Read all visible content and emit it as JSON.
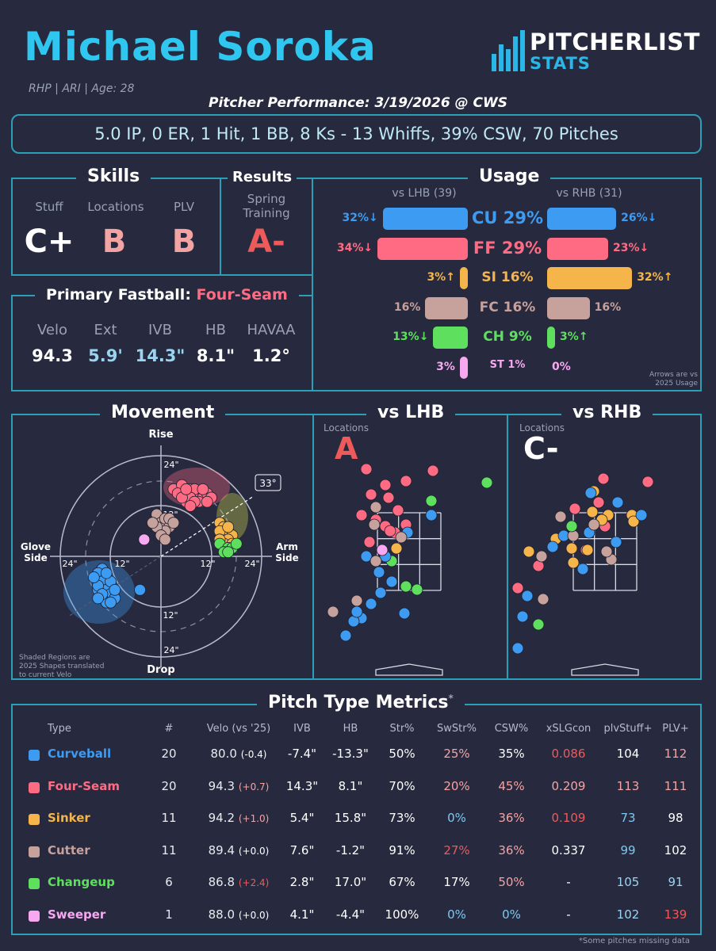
{
  "header": {
    "name": "Michael Soroka",
    "bio": "RHP | ARI | Age: 28",
    "logo_top": "PITCHERLIST",
    "logo_bottom": "STATS",
    "performance_title": "Pitcher Performance: 3/19/2026 @ CWS",
    "summary": "5.0 IP, 0 ER, 1 Hit, 1 BB, 8 Ks - 13 Whiffs, 39% CSW, 70 Pitches"
  },
  "skills": {
    "title": "Skills",
    "items": [
      {
        "label": "Stuff",
        "grade": "C+",
        "color": "#ffffff"
      },
      {
        "label": "Locations",
        "grade": "B",
        "color": "#f4a3a3"
      },
      {
        "label": "PLV",
        "grade": "B",
        "color": "#f4a3a3"
      }
    ]
  },
  "results": {
    "title": "Results",
    "label_line1": "Spring",
    "label_line2": "Training",
    "grade": "A-",
    "color": "#ee5a5a"
  },
  "fastball": {
    "title_prefix": "Primary Fastball:",
    "pitch": "Four-Seam",
    "pitch_color": "#ff6b82",
    "stats": [
      {
        "label": "Velo",
        "value": "94.3",
        "color": "#ffffff"
      },
      {
        "label": "Ext",
        "value": "5.9'",
        "color": "#9ad4f0"
      },
      {
        "label": "IVB",
        "value": "14.3\"",
        "color": "#9ad4f0"
      },
      {
        "label": "HB",
        "value": "8.1\"",
        "color": "#ffffff"
      },
      {
        "label": "HAVAA",
        "value": "1.2°",
        "color": "#ffffff"
      }
    ]
  },
  "usage": {
    "title": "Usage",
    "lhb_header": "vs LHB (39)",
    "rhb_header": "vs RHB (31)",
    "note_line1": "Arrows are vs",
    "note_line2": "2025 Usage",
    "rows": [
      {
        "mid": "CU 29%",
        "color": "#3d9bf2",
        "lhb": 32,
        "lhb_label": "32%↓",
        "rhb": 26,
        "rhb_label": "26%↓",
        "big": true
      },
      {
        "mid": "FF 29%",
        "color": "#ff6b82",
        "lhb": 34,
        "lhb_label": "34%↓",
        "rhb": 23,
        "rhb_label": "23%↓",
        "big": true
      },
      {
        "mid": "SI 16%",
        "color": "#f5b54a",
        "lhb": 3,
        "lhb_label": "3%↑",
        "rhb": 32,
        "rhb_label": "32%↑",
        "big": false
      },
      {
        "mid": "FC 16%",
        "color": "#c7a19b",
        "lhb": 16,
        "lhb_label": "16%",
        "rhb": 16,
        "rhb_label": "16%",
        "big": false
      },
      {
        "mid": "CH 9%",
        "color": "#5ee05e",
        "lhb": 13,
        "lhb_label": "13%↓",
        "rhb": 3,
        "rhb_label": "3%↑",
        "big": false
      },
      {
        "mid": "ST 1%",
        "color": "#f7a8f0",
        "lhb": 3,
        "lhb_label": "3%",
        "rhb": 0,
        "rhb_label": "0%",
        "big": false
      }
    ]
  },
  "movement": {
    "title": "Movement",
    "rise": "Rise",
    "drop": "Drop",
    "glove_line1": "Glove",
    "glove_line2": "Side",
    "arm_line1": "Arm",
    "arm_line2": "Side",
    "angle": "33°",
    "ring_24": "24\"",
    "ring_12": "12\"",
    "note_line1": "Shaded Regions are",
    "note_line2": "2025 Shapes translated",
    "note_line3": "to current Velo"
  },
  "locations": {
    "lhb_title": "vs LHB",
    "rhb_title": "vs RHB",
    "label": "Locations",
    "lhb_grade": "A",
    "lhb_grade_color": "#ee5a5a",
    "rhb_grade": "C-",
    "rhb_grade_color": "#ffffff"
  },
  "metrics": {
    "title": "Pitch Type Metrics",
    "title_mark": "*",
    "footnote": "*Some pitches missing data",
    "headers": [
      "Type",
      "#",
      "Velo (vs '25)",
      "IVB",
      "HB",
      "Str%",
      "SwStr%",
      "CSW%",
      "xSLGcon",
      "plvStuff+",
      "PLV+"
    ],
    "rows": [
      {
        "type": "Curveball",
        "color": "#3d9bf2",
        "n": "20",
        "velo": "80.0",
        "velo_delta": "(-0.4)",
        "ivb": "-7.4\"",
        "hb": "-13.3\"",
        "str": "50%",
        "swstr": "25%",
        "csw": "35%",
        "xslg": "0.086",
        "stuff": "104",
        "plv": "112"
      },
      {
        "type": "Four-Seam",
        "color": "#ff6b82",
        "n": "20",
        "velo": "94.3",
        "velo_delta": "(+0.7)",
        "ivb": "14.3\"",
        "hb": "8.1\"",
        "str": "70%",
        "swstr": "20%",
        "csw": "45%",
        "xslg": "0.209",
        "stuff": "113",
        "plv": "111"
      },
      {
        "type": "Sinker",
        "color": "#f5b54a",
        "n": "11",
        "velo": "94.2",
        "velo_delta": "(+1.0)",
        "ivb": "5.4\"",
        "hb": "15.8\"",
        "str": "73%",
        "swstr": "0%",
        "csw": "36%",
        "xslg": "0.109",
        "stuff": "73",
        "plv": "98"
      },
      {
        "type": "Cutter",
        "color": "#c7a19b",
        "n": "11",
        "velo": "89.4",
        "velo_delta": "(+0.0)",
        "ivb": "7.6\"",
        "hb": "-1.2\"",
        "str": "91%",
        "swstr": "27%",
        "csw": "36%",
        "xslg": "0.337",
        "stuff": "99",
        "plv": "102"
      },
      {
        "type": "Changeup",
        "color": "#5ee05e",
        "n": "6",
        "velo": "86.8",
        "velo_delta": "(+2.4)",
        "ivb": "2.8\"",
        "hb": "17.0\"",
        "str": "67%",
        "swstr": "17%",
        "csw": "50%",
        "xslg": "-",
        "stuff": "105",
        "plv": "91"
      },
      {
        "type": "Sweeper",
        "color": "#f7a8f0",
        "n": "1",
        "velo": "88.0",
        "velo_delta": "(+0.0)",
        "ivb": "4.1\"",
        "hb": "-4.4\"",
        "str": "100%",
        "swstr": "0%",
        "csw": "0%",
        "xslg": "-",
        "stuff": "102",
        "plv": "139"
      }
    ],
    "cell_colors": {
      "Curveball": {
        "swstr": "#f4a3a3",
        "csw": "#ffffff",
        "xslg": "#ee5a5a",
        "stuff": "#ffffff",
        "plv": "#f4a3a3",
        "velo_delta": "#ffffff"
      },
      "Four-Seam": {
        "swstr": "#f4a3a3",
        "csw": "#f4a3a3",
        "xslg": "#f4a3a3",
        "stuff": "#f4a3a3",
        "plv": "#f4a3a3",
        "velo_delta": "#f4a3a3"
      },
      "Sinker": {
        "swstr": "#7ec8f0",
        "csw": "#f4a3a3",
        "xslg": "#ee5a5a",
        "stuff": "#7ec8f0",
        "plv": "#ffffff",
        "velo_delta": "#f4a3a3"
      },
      "Cutter": {
        "swstr": "#ee5a5a",
        "csw": "#f4a3a3",
        "xslg": "#ffffff",
        "stuff": "#7ec8f0",
        "plv": "#ffffff",
        "velo_delta": "#ffffff"
      },
      "Changeup": {
        "swstr": "#ffffff",
        "csw": "#f4a3a3",
        "xslg": "#ffffff",
        "stuff": "#9ad4f0",
        "plv": "#9ad4f0",
        "velo_delta": "#ee5a5a"
      },
      "Sweeper": {
        "swstr": "#7ec8f0",
        "csw": "#7ec8f0",
        "xslg": "#ffffff",
        "stuff": "#9ad4f0",
        "plv": "#ee5a5a",
        "velo_delta": "#ffffff"
      }
    }
  },
  "chart_data": [
    {
      "type": "bar",
      "title": "Usage",
      "categories": [
        "CU",
        "FF",
        "SI",
        "FC",
        "CH",
        "ST"
      ],
      "series": [
        {
          "name": "vs LHB (39)",
          "values": [
            32,
            34,
            3,
            16,
            13,
            3
          ]
        },
        {
          "name": "vs RHB (31)",
          "values": [
            26,
            23,
            32,
            16,
            3,
            0
          ]
        }
      ]
    },
    {
      "type": "scatter",
      "title": "Movement",
      "xlabel": "Arm Side",
      "ylabel": "Rise",
      "xlim": [
        -30,
        30
      ],
      "ylim": [
        -30,
        30
      ],
      "series": [
        {
          "name": "CU",
          "color": "#3d9bf2",
          "points": [
            [
              -14,
              -3
            ],
            [
              -15,
              -4
            ],
            [
              -13,
              -5
            ],
            [
              -14,
              -6
            ],
            [
              -12,
              -7
            ],
            [
              -13,
              -8
            ],
            [
              -15,
              -8
            ],
            [
              -12,
              -9
            ],
            [
              -14,
              -10
            ],
            [
              -11,
              -10
            ],
            [
              -13,
              -11
            ],
            [
              -15,
              -7
            ],
            [
              -16,
              -5
            ],
            [
              -12,
              -6
            ],
            [
              -13,
              -4
            ],
            [
              -14,
              -9
            ],
            [
              -11,
              -8
            ],
            [
              -12,
              -11
            ],
            [
              -5,
              -8
            ],
            [
              -15,
              -10
            ]
          ]
        },
        {
          "name": "FF",
          "color": "#ff6b82",
          "points": [
            [
              3,
              16
            ],
            [
              5,
              17
            ],
            [
              6,
              15
            ],
            [
              7,
              16
            ],
            [
              8,
              14
            ],
            [
              9,
              15
            ],
            [
              10,
              14
            ],
            [
              11,
              15
            ],
            [
              8,
              16
            ],
            [
              6,
              13
            ],
            [
              7,
              14
            ],
            [
              9,
              13
            ],
            [
              4,
              15
            ],
            [
              5,
              14
            ],
            [
              10,
              16
            ],
            [
              12,
              14
            ],
            [
              8,
              13
            ],
            [
              6,
              16
            ],
            [
              7,
              12
            ],
            [
              11,
              13
            ]
          ]
        },
        {
          "name": "SI",
          "color": "#f5b54a",
          "points": [
            [
              14,
              8
            ],
            [
              15,
              7
            ],
            [
              16,
              6
            ],
            [
              15,
              5
            ],
            [
              17,
              5
            ],
            [
              16,
              4
            ],
            [
              14,
              6
            ],
            [
              15,
              3
            ],
            [
              17,
              3
            ],
            [
              16,
              7
            ],
            [
              14,
              4
            ]
          ]
        },
        {
          "name": "FC",
          "color": "#c7a19b",
          "points": [
            [
              -1,
              10
            ],
            [
              0,
              8
            ],
            [
              1,
              9
            ],
            [
              2,
              7
            ],
            [
              1,
              6
            ],
            [
              -1,
              7
            ],
            [
              0,
              5
            ],
            [
              2,
              9
            ],
            [
              1,
              4
            ],
            [
              -2,
              8
            ],
            [
              3,
              8
            ]
          ]
        },
        {
          "name": "CH",
          "color": "#5ee05e",
          "points": [
            [
              14,
              3
            ],
            [
              16,
              2
            ],
            [
              15,
              1
            ],
            [
              17,
              2
            ],
            [
              18,
              3
            ],
            [
              16,
              1
            ]
          ]
        },
        {
          "name": "ST",
          "color": "#f7a8f0",
          "points": [
            [
              -4,
              4
            ]
          ]
        }
      ]
    }
  ]
}
